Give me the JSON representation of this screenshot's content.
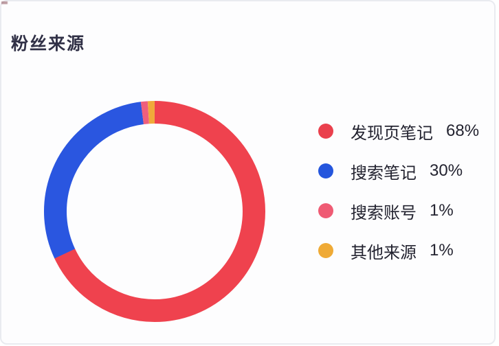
{
  "panel": {
    "title": "粉丝来源"
  },
  "colors": {
    "card_background": "#fdfdfe",
    "card_border": "#e9ebf0",
    "title_text": "#303046",
    "legend_text": "#232330"
  },
  "chart_data": {
    "type": "pie",
    "subtype": "donut",
    "title": "粉丝来源",
    "categories": [
      "发现页笔记",
      "搜索笔记",
      "搜索账号",
      "其他来源"
    ],
    "values": [
      68,
      30,
      1,
      1
    ],
    "unit": "%",
    "colors": [
      "#ef424e",
      "#2a56e0",
      "#ee5f7d",
      "#f0a93a"
    ],
    "start_angle_deg": 0,
    "direction": "clockwise",
    "legend_position": "right",
    "donut_thickness_ratio": 0.21,
    "legend": [
      {
        "label": "发现页笔记",
        "value": "68%",
        "color": "#ea404d"
      },
      {
        "label": "搜索笔记",
        "value": "30%",
        "color": "#2556dd"
      },
      {
        "label": "搜索账号",
        "value": "1%",
        "color": "#ef5b74"
      },
      {
        "label": "其他来源",
        "value": "1%",
        "color": "#efaa36"
      }
    ]
  }
}
